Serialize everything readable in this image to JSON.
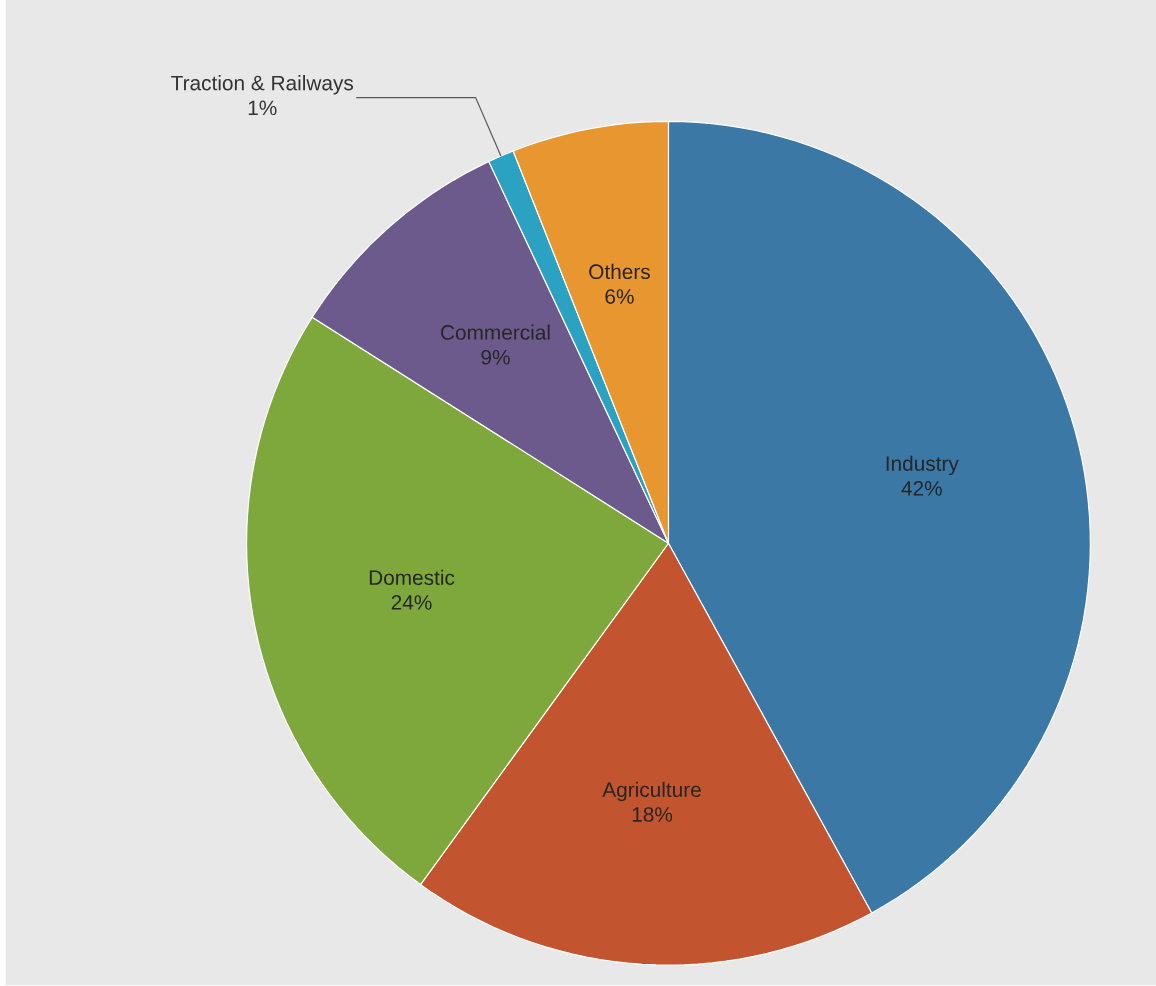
{
  "chart_data": {
    "type": "pie",
    "categories": [
      "Industry",
      "Agriculture",
      "Domestic",
      "Commercial",
      "Traction & Railways",
      "Others"
    ],
    "values": [
      42,
      18,
      24,
      9,
      1,
      6
    ],
    "value_labels": [
      "42%",
      "18%",
      "24%",
      "9%",
      "1%",
      "6%"
    ],
    "colors": [
      "#3b78a6",
      "#c2552f",
      "#7ea83b",
      "#6d5a8c",
      "#2ba2c2",
      "#e8962f"
    ]
  }
}
